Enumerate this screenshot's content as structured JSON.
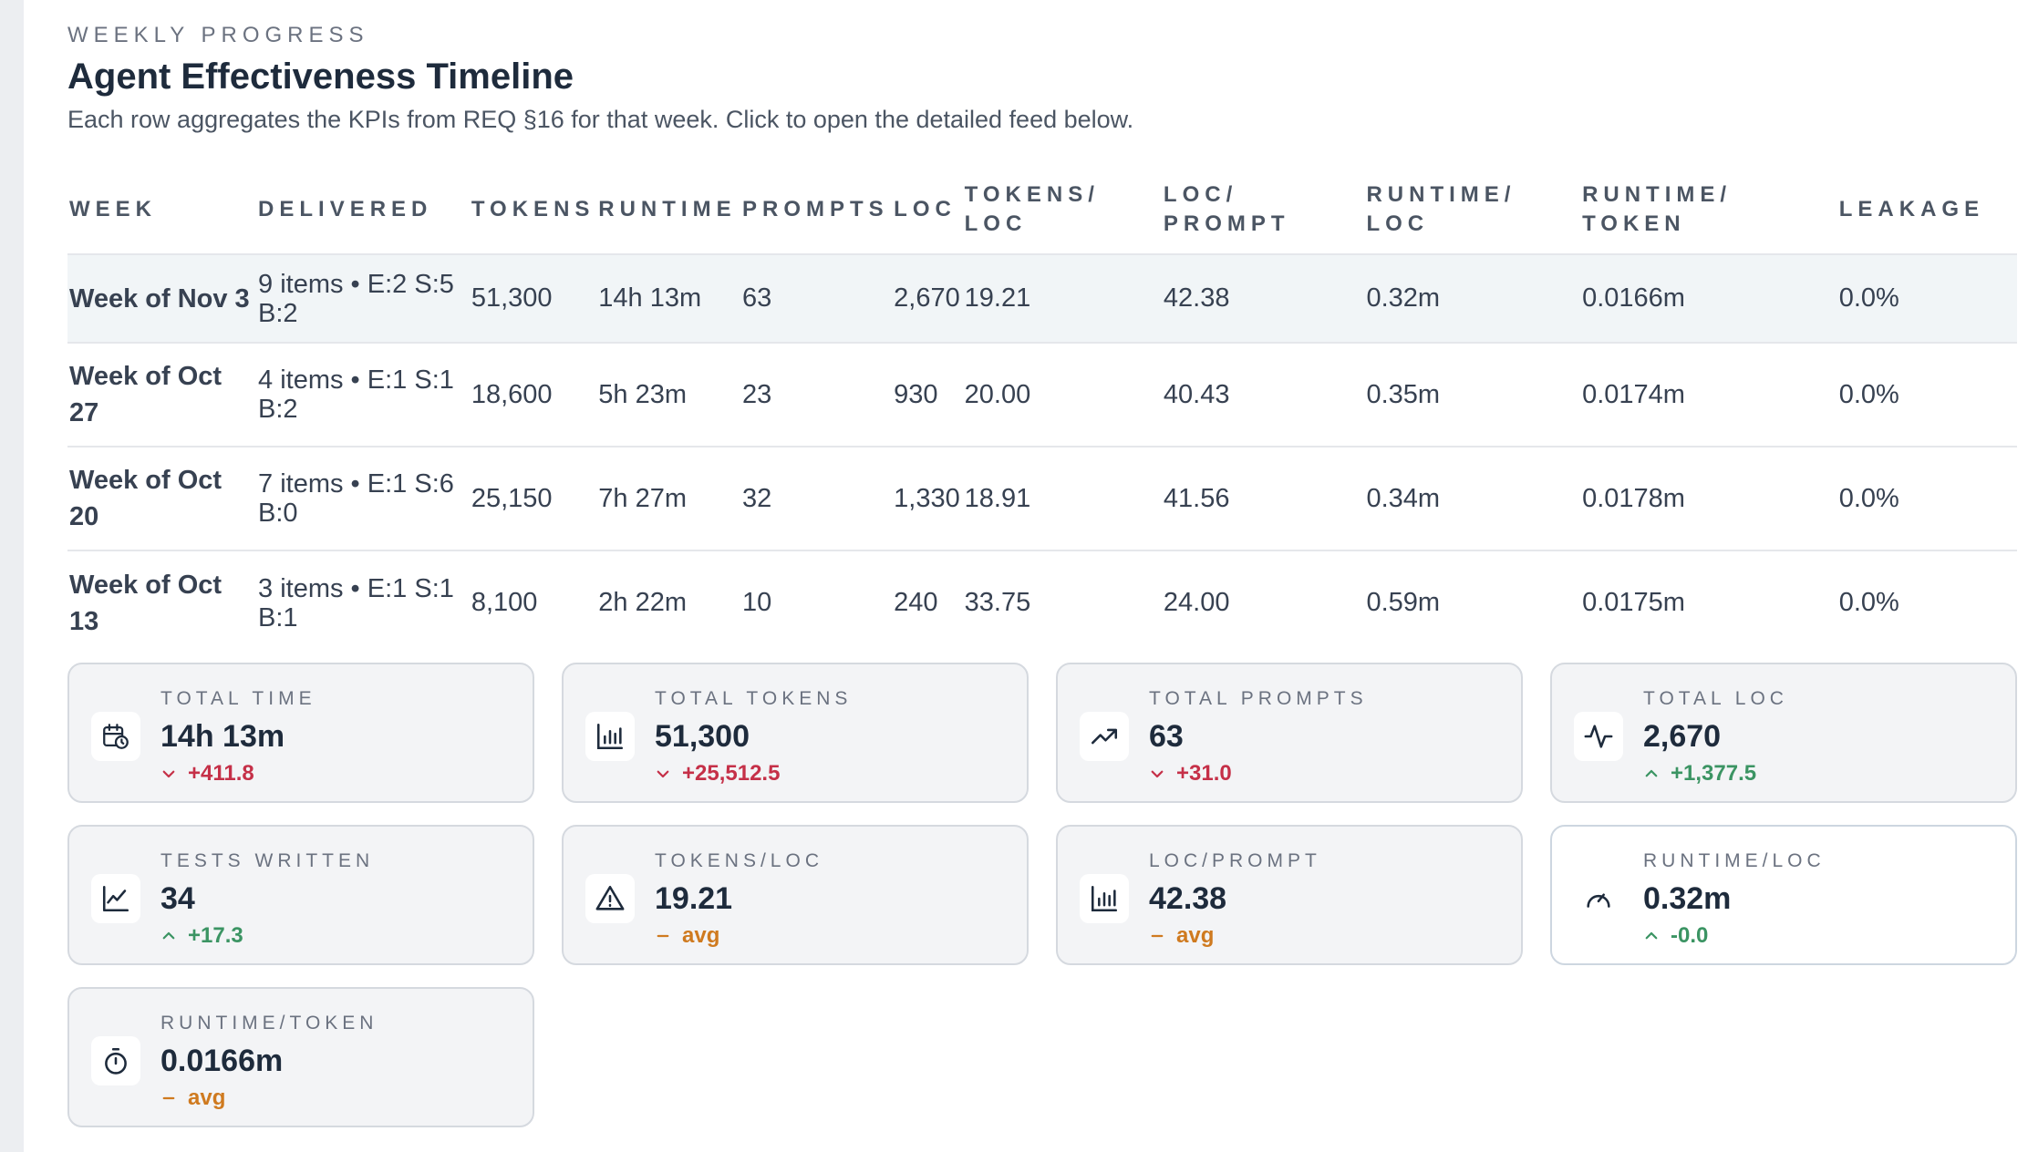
{
  "header": {
    "eyebrow": "WEEKLY PROGRESS",
    "title": "Agent Effectiveness Timeline",
    "subtitle": "Each row aggregates the KPIs from REQ §16 for that week. Click to open the detailed feed below."
  },
  "table": {
    "columns": [
      "WEEK",
      "DELIVERED",
      "TOKENS",
      "RUNTIME",
      "PROMPTS",
      "LOC",
      "TOKENS/ LOC",
      "LOC/ PROMPT",
      "RUNTIME/ LOC",
      "RUNTIME/ TOKEN",
      "LEAKAGE"
    ],
    "rows": [
      {
        "week": "Week of Nov 3",
        "delivered": "9 items • E:2 S:5 B:2",
        "tokens": "51,300",
        "runtime": "14h 13m",
        "prompts": "63",
        "loc": "2,670",
        "tokens_loc": "19.21",
        "loc_prompt": "42.38",
        "runtime_loc": "0.32m",
        "runtime_token": "0.0166m",
        "leakage": "0.0%"
      },
      {
        "week": "Week of Oct 27",
        "delivered": "4 items • E:1 S:1 B:2",
        "tokens": "18,600",
        "runtime": "5h 23m",
        "prompts": "23",
        "loc": "930",
        "tokens_loc": "20.00",
        "loc_prompt": "40.43",
        "runtime_loc": "0.35m",
        "runtime_token": "0.0174m",
        "leakage": "0.0%"
      },
      {
        "week": "Week of Oct 20",
        "delivered": "7 items • E:1 S:6 B:0",
        "tokens": "25,150",
        "runtime": "7h 27m",
        "prompts": "32",
        "loc": "1,330",
        "tokens_loc": "18.91",
        "loc_prompt": "41.56",
        "runtime_loc": "0.34m",
        "runtime_token": "0.0178m",
        "leakage": "0.0%"
      },
      {
        "week": "Week of Oct 13",
        "delivered": "3 items • E:1 S:1 B:1",
        "tokens": "8,100",
        "runtime": "2h 22m",
        "prompts": "10",
        "loc": "240",
        "tokens_loc": "33.75",
        "loc_prompt": "24.00",
        "runtime_loc": "0.59m",
        "runtime_token": "0.0175m",
        "leakage": "0.0%"
      }
    ]
  },
  "cards": [
    {
      "label": "TOTAL TIME",
      "value": "14h 13m",
      "delta": "+411.8",
      "trend": "down",
      "tone": "neg",
      "icon": "calendar-clock-icon",
      "white": false
    },
    {
      "label": "TOTAL TOKENS",
      "value": "51,300",
      "delta": "+25,512.5",
      "trend": "down",
      "tone": "neg",
      "icon": "bar-chart-icon",
      "white": false
    },
    {
      "label": "TOTAL PROMPTS",
      "value": "63",
      "delta": "+31.0",
      "trend": "down",
      "tone": "neg",
      "icon": "trending-up-icon",
      "white": false
    },
    {
      "label": "TOTAL LOC",
      "value": "2,670",
      "delta": "+1,377.5",
      "trend": "up",
      "tone": "pos",
      "icon": "activity-icon",
      "white": false
    },
    {
      "label": "TESTS WRITTEN",
      "value": "34",
      "delta": "+17.3",
      "trend": "up",
      "tone": "pos",
      "icon": "line-chart-icon",
      "white": false
    },
    {
      "label": "TOKENS/LOC",
      "value": "19.21",
      "delta": "avg",
      "trend": "flat",
      "tone": "avg",
      "icon": "warning-icon",
      "white": false
    },
    {
      "label": "LOC/PROMPT",
      "value": "42.38",
      "delta": "avg",
      "trend": "flat",
      "tone": "avg",
      "icon": "bar-chart-icon",
      "white": false
    },
    {
      "label": "RUNTIME/LOC",
      "value": "0.32m",
      "delta": "-0.0",
      "trend": "up",
      "tone": "pos",
      "icon": "gauge-icon",
      "white": true
    },
    {
      "label": "RUNTIME/TOKEN",
      "value": "0.0166m",
      "delta": "avg",
      "trend": "flat",
      "tone": "avg",
      "icon": "timer-icon",
      "white": false
    }
  ],
  "colors": {
    "negative": "#c53048",
    "positive": "#3b9463",
    "average": "#cf7a1f",
    "title": "#1e2b3c"
  }
}
